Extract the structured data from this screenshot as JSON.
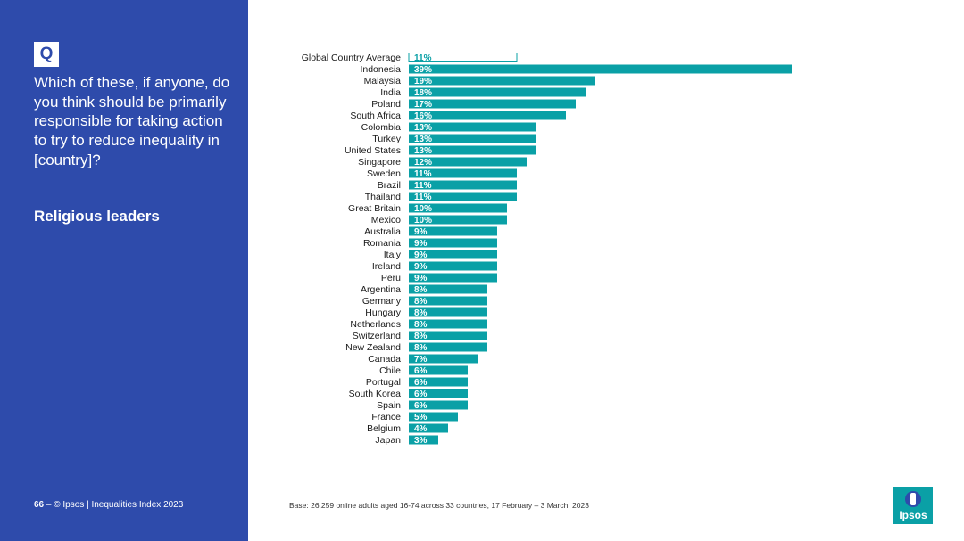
{
  "sidebar": {
    "q_label": "Q",
    "question": "Which of these, if anyone, do you think should be primarily responsible for taking action to try to reduce inequality in [country]?",
    "subtitle": "Religious leaders"
  },
  "footer": {
    "page_number": "66",
    "separator": "–",
    "copyright": "© Ipsos | Inequalities Index 2023",
    "base_note": "Base: 26,259 online adults aged 16-74 across 33 countries, 17 February – 3 March, 2023"
  },
  "logo": {
    "text": "Ipsos"
  },
  "colors": {
    "bar": "#0aa0a6",
    "sidebar": "#2e4bab",
    "average_bar_fill": "#ffffff"
  },
  "chart_data": {
    "type": "bar",
    "orientation": "horizontal",
    "categories": [
      "Global Country Average",
      "Indonesia",
      "Malaysia",
      "India",
      "Poland",
      "South Africa",
      "Colombia",
      "Turkey",
      "United States",
      "Singapore",
      "Sweden",
      "Brazil",
      "Thailand",
      "Great Britain",
      "Mexico",
      "Australia",
      "Romania",
      "Italy",
      "Ireland",
      "Peru",
      "Argentina",
      "Germany",
      "Hungary",
      "Netherlands",
      "Switzerland",
      "New Zealand",
      "Canada",
      "Chile",
      "Portugal",
      "South Korea",
      "Spain",
      "France",
      "Belgium",
      "Japan"
    ],
    "values": [
      11,
      39,
      19,
      18,
      17,
      16,
      13,
      13,
      13,
      12,
      11,
      11,
      11,
      10,
      10,
      9,
      9,
      9,
      9,
      9,
      8,
      8,
      8,
      8,
      8,
      8,
      7,
      6,
      6,
      6,
      6,
      5,
      4,
      3
    ],
    "data_labels": [
      "11%",
      "39%",
      "19%",
      "18%",
      "17%",
      "16%",
      "13%",
      "13%",
      "13%",
      "12%",
      "11%",
      "11%",
      "11%",
      "10%",
      "10%",
      "9%",
      "9%",
      "9%",
      "9%",
      "9%",
      "8%",
      "8%",
      "8%",
      "8%",
      "8%",
      "8%",
      "7%",
      "6%",
      "6%",
      "6%",
      "6%",
      "5%",
      "4%",
      "3%"
    ],
    "unit": "%",
    "xlim": [
      0,
      40
    ],
    "grid": false,
    "legend": "none"
  }
}
